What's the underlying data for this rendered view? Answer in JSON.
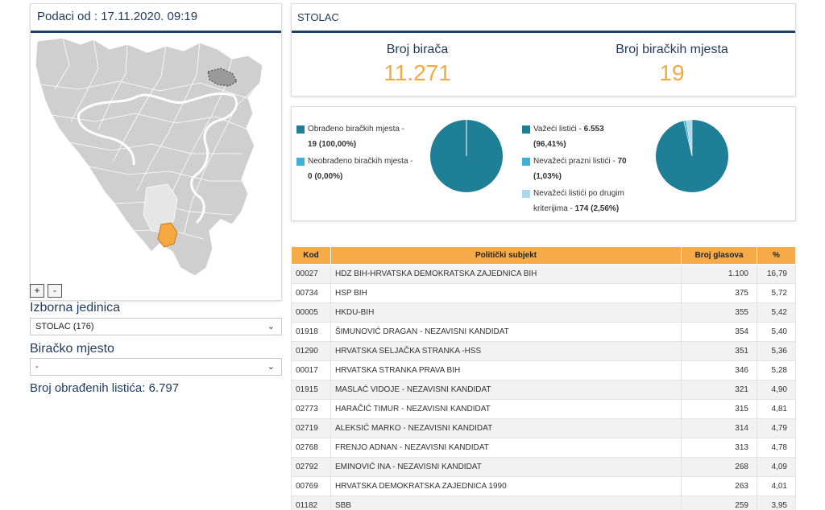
{
  "left": {
    "header": "Podaci od : 17.11.2020. 09:19",
    "zoom_in": "+",
    "zoom_out": "-",
    "constituency_label": "Izborna jedinica",
    "constituency_value": "STOLAC (176)",
    "polling_label": "Biračko mjesto",
    "polling_value": "-",
    "processed_text": "Broj obrađenih listića: 6.797"
  },
  "summary": {
    "municipality": "STOLAC",
    "voters_label": "Broj birača",
    "voters_value": "11.271",
    "stations_label": "Broj biračkih mjesta",
    "stations_value": "19"
  },
  "colors": {
    "dark_teal": "#1f7f96",
    "mid_blue": "#3fb0d8",
    "light_blue": "#a8d9ec",
    "accent_orange": "#f5a940",
    "header_navy": "#1c3f6e"
  },
  "pie_left": {
    "legend": [
      {
        "label": "Obrađeno biračkih mjesta -",
        "value": "19 (100,00%)"
      },
      {
        "label": "Neobrađeno biračkih mjesta -",
        "value": "0 (0,00%)"
      }
    ],
    "slices": [
      100.0,
      0.0
    ]
  },
  "pie_right": {
    "legend": [
      {
        "label": "Važeći listići -",
        "value": "6.553",
        "pct": "(96,41%)"
      },
      {
        "label": "Nevažeći prazni listići -",
        "value": "70",
        "pct": "(1,03%)"
      },
      {
        "label": "Nevažeći listići po drugim",
        "label2": "kriterijima -",
        "value": "174 (2,56%)"
      }
    ],
    "slices": [
      96.41,
      1.03,
      2.56
    ]
  },
  "table": {
    "headers": [
      "Kod",
      "Politički subjekt",
      "Broj glasova",
      "%"
    ],
    "rows": [
      [
        "00027",
        "HDZ BIH-HRVATSKA DEMOKRATSKA ZAJEDNICA BIH",
        "1.100",
        "16,79"
      ],
      [
        "00734",
        "HSP BIH",
        "375",
        "5,72"
      ],
      [
        "00005",
        "HKDU-BIH",
        "355",
        "5,42"
      ],
      [
        "01918",
        "ŠIMUNOVIĆ DRAGAN - NEZAVISNI KANDIDAT",
        "354",
        "5,40"
      ],
      [
        "01290",
        "HRVATSKA SELJAČKA STRANKA -HSS",
        "351",
        "5,36"
      ],
      [
        "00017",
        "HRVATSKA STRANKA PRAVA BIH",
        "346",
        "5,28"
      ],
      [
        "01915",
        "MASLAĆ VIDOJE - NEZAVISNI KANDIDAT",
        "321",
        "4,90"
      ],
      [
        "02773",
        "HARAČIĆ TIMUR - NEZAVISNI KANDIDAT",
        "315",
        "4,81"
      ],
      [
        "02719",
        "ALEKSIĆ MARKO - NEZAVISNI KANDIDAT",
        "314",
        "4,79"
      ],
      [
        "02768",
        "FRENJO ADNAN - NEZAVISNI KANDIDAT",
        "313",
        "4,78"
      ],
      [
        "02792",
        "EMINOVIĆ INA - NEZAVISNI KANDIDAT",
        "268",
        "4,09"
      ],
      [
        "00769",
        "HRVATSKA DEMOKRATSKA ZAJEDNICA 1990",
        "263",
        "4,01"
      ],
      [
        "01182",
        "SBB",
        "259",
        "3,95"
      ]
    ]
  }
}
